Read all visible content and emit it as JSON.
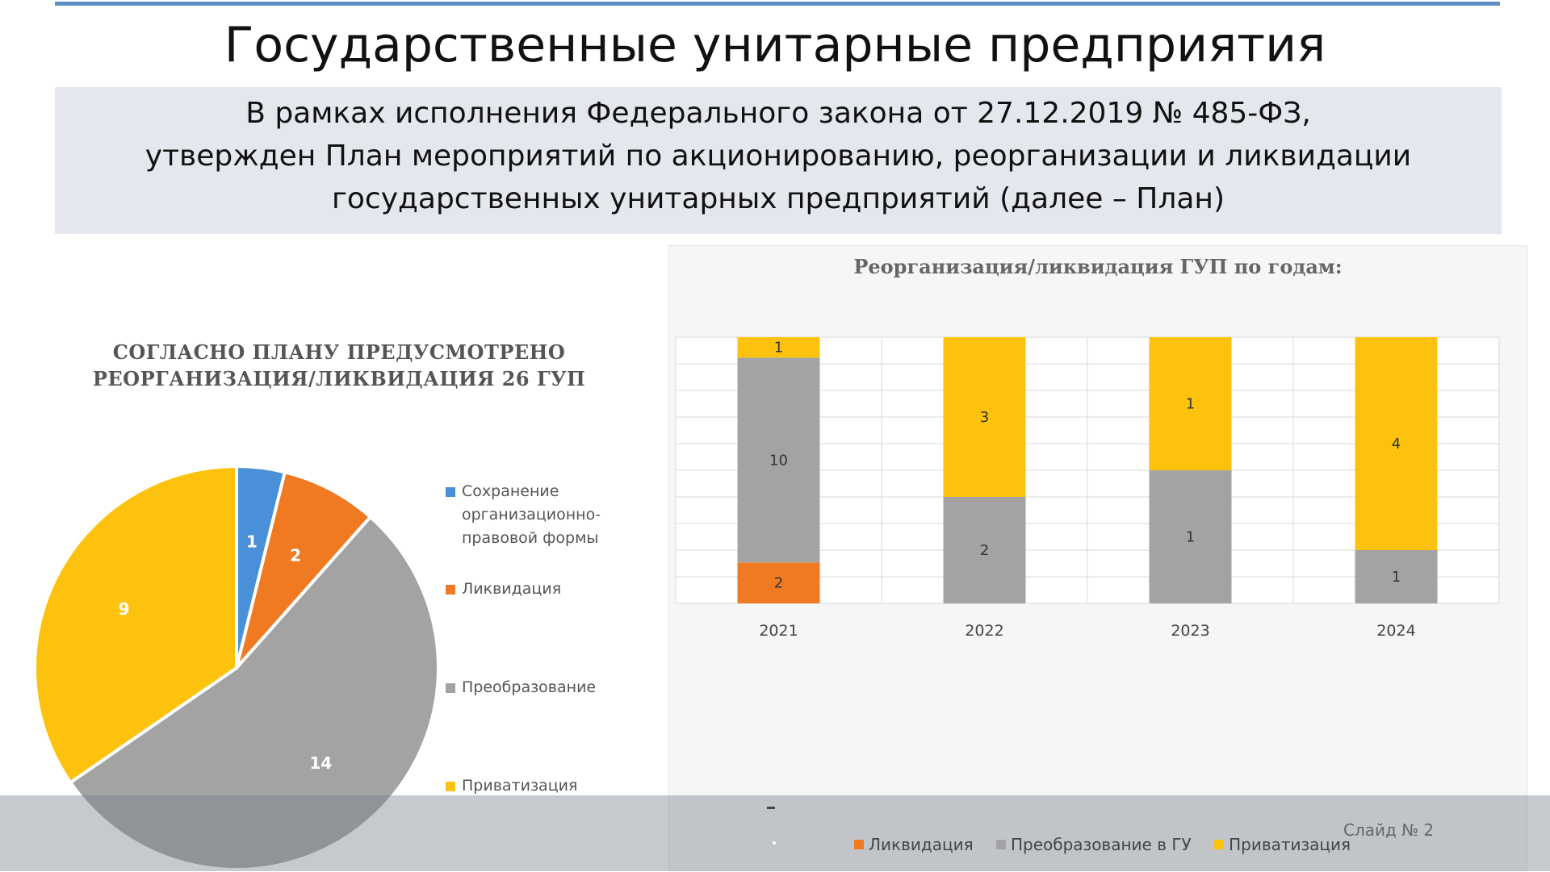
{
  "slide": {
    "title": "Государственные унитарные предприятия",
    "intro_lines": [
      "В рамках исполнения Федерального закона от 27.12.2019 № 485-ФЗ,",
      "утвержден План мероприятий  по акционированию, реорганизации и ликвидации",
      "государственных унитарных предприятий (далее – План)"
    ],
    "slide_number": "Слайд № 2"
  },
  "chart_data": [
    {
      "type": "pie",
      "title_lines": [
        "СОГЛАСНО ПЛАНУ ПРЕДУСМОТРЕНО",
        "РЕОРГАНИЗАЦИЯ/ЛИКВИДАЦИЯ 26 ГУП"
      ],
      "slices": [
        {
          "label": "Сохранение организационно-правовой формы",
          "legend_lines": [
            "Сохранение",
            "организационно-",
            "правовой формы"
          ],
          "value": 1,
          "color": "#4a90d9"
        },
        {
          "label": "Ликвидация",
          "legend_lines": [
            "Ликвидация"
          ],
          "value": 2,
          "color": "#f07a22"
        },
        {
          "label": "Преобразование",
          "legend_lines": [
            "Преобразование"
          ],
          "value": 14,
          "color": "#a3a3a3"
        },
        {
          "label": "Приватизация",
          "legend_lines": [
            "Приватизация"
          ],
          "value": 9,
          "color": "#fcc20e"
        }
      ]
    },
    {
      "type": "bar",
      "stacked": true,
      "title": "Реорганизация/ликвидация ГУП по годам:",
      "categories": [
        "2021",
        "2022",
        "2023",
        "2024"
      ],
      "series": [
        {
          "name": "Ликвидация",
          "color": "#f07a22",
          "values": [
            2,
            0,
            0,
            0
          ]
        },
        {
          "name": "Преобразование в ГУ",
          "color": "#a3a3a3",
          "values": [
            10,
            2,
            1,
            1
          ]
        },
        {
          "name": "Приватизация",
          "color": "#fcc20e",
          "values": [
            1,
            3,
            1,
            4
          ]
        }
      ],
      "normalized": true,
      "grid": true,
      "legend_position": "bottom"
    }
  ]
}
